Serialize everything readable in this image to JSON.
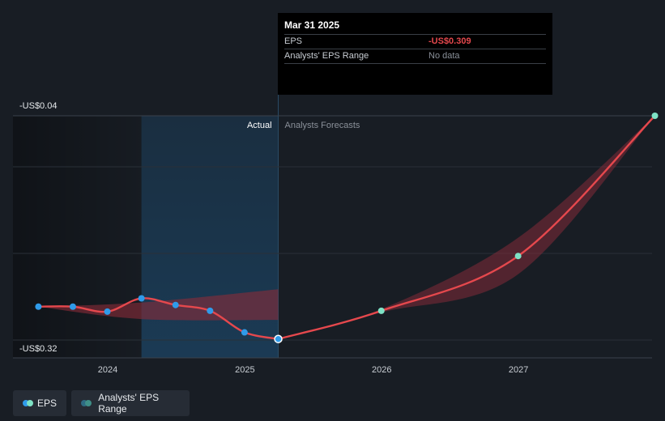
{
  "tooltip": {
    "date": "Mar 31 2025",
    "rows": [
      {
        "label": "EPS",
        "value": "-US$0.309"
      },
      {
        "label": "Analysts' EPS Range",
        "value": "No data"
      }
    ]
  },
  "region_labels": {
    "actual": "Actual",
    "forecast": "Analysts Forecasts"
  },
  "legend": {
    "eps": "EPS",
    "range": "Analysts' EPS Range"
  },
  "colors": {
    "background": "#181d24",
    "eps_line": "#e5484d",
    "eps_dot_actual": "#2f9bea",
    "eps_dot_forecast": "#7ee2c5",
    "range_band": "#8b2c39",
    "highlight": "#1b3c57"
  },
  "chart_data": {
    "type": "line",
    "y_tick_labels": [
      "-US$0.04",
      "-US$0.32"
    ],
    "ylim": [
      -0.32,
      -0.04
    ],
    "x_tick_labels": [
      "2024",
      "2025",
      "2026",
      "2027"
    ],
    "xlim": [
      "2023-07",
      "2027-12"
    ],
    "grid": true,
    "series": [
      {
        "name": "EPS",
        "kind": "actual",
        "points": [
          {
            "x": "2023-06-30",
            "y": -0.27
          },
          {
            "x": "2023-09-30",
            "y": -0.27
          },
          {
            "x": "2023-12-31",
            "y": -0.276
          },
          {
            "x": "2024-03-31",
            "y": -0.26
          },
          {
            "x": "2024-06-30",
            "y": -0.268
          },
          {
            "x": "2024-09-30",
            "y": -0.275
          },
          {
            "x": "2024-12-31",
            "y": -0.301
          },
          {
            "x": "2025-03-31",
            "y": -0.309
          }
        ]
      },
      {
        "name": "EPS",
        "kind": "forecast",
        "points": [
          {
            "x": "2025-03-31",
            "y": -0.309
          },
          {
            "x": "2025-12-31",
            "y": -0.275
          },
          {
            "x": "2026-12-31",
            "y": -0.209
          },
          {
            "x": "2027-12-31",
            "y": -0.04
          }
        ]
      }
    ],
    "range_band_past": [
      {
        "x": "2023-06-30",
        "low": -0.27,
        "high": -0.27
      },
      {
        "x": "2024-03-31",
        "low": -0.285,
        "high": -0.265
      },
      {
        "x": "2025-03-31",
        "low": -0.286,
        "high": -0.249
      }
    ],
    "range_band_forecast": [
      {
        "x": "2025-03-31",
        "low": -0.309,
        "high": -0.309
      },
      {
        "x": "2025-12-31",
        "low": -0.277,
        "high": -0.273
      },
      {
        "x": "2026-12-31",
        "low": -0.231,
        "high": -0.187
      },
      {
        "x": "2027-12-31",
        "low": -0.04,
        "high": -0.04
      }
    ],
    "highlight_from": "2024-03-31",
    "divider_at": "2025-03-31"
  }
}
